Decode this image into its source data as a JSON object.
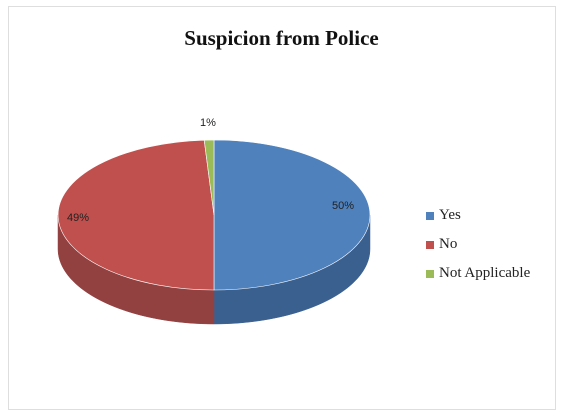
{
  "chart_data": {
    "type": "pie",
    "title": "Suspicion from Police",
    "categories": [
      "Yes",
      "No",
      "Not Applicable"
    ],
    "values": [
      50,
      49,
      1
    ],
    "data_labels": [
      "50%",
      "49%",
      "1%"
    ],
    "colors": [
      "#4F81BD",
      "#C0504D",
      "#9BBB59"
    ],
    "side_colors": [
      "#3A6090",
      "#934040",
      "#779040"
    ],
    "legend_position": "right",
    "style": "3d"
  }
}
